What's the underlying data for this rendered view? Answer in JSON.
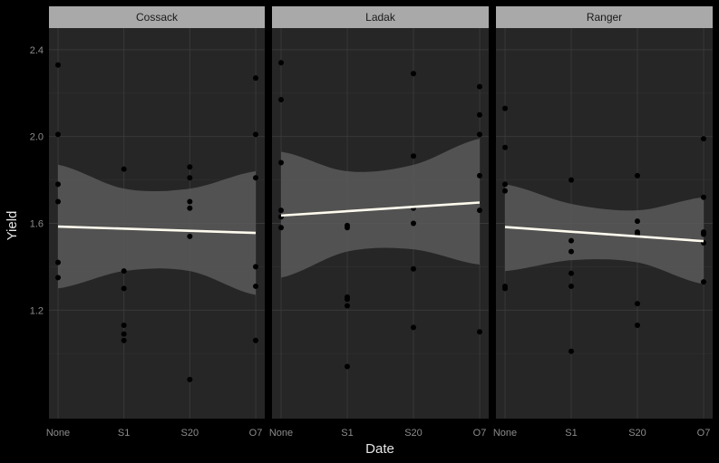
{
  "chart_data": {
    "type": "scatter",
    "facet_by": "Variety",
    "xlabel": "Date",
    "ylabel": "Yield",
    "categories": [
      "None",
      "S1",
      "S20",
      "O7"
    ],
    "ylim": [
      0.7,
      2.5
    ],
    "yticks": [
      "1.2",
      "1.6",
      "2.0",
      "2.4"
    ],
    "grid": true,
    "colors": {
      "background": "#000000",
      "panel": "#262626",
      "grid_major": "#3a3a3a",
      "grid_minor": "#303030",
      "strip": "#a9a9a9",
      "points": "#000000",
      "ribbon": "#5a5a5a",
      "fit_line": "#fffbee"
    },
    "facets": [
      {
        "label": "Cossack",
        "points": [
          {
            "x": "None",
            "y": 2.33
          },
          {
            "x": "None",
            "y": 2.01
          },
          {
            "x": "None",
            "y": 1.78
          },
          {
            "x": "None",
            "y": 1.7
          },
          {
            "x": "None",
            "y": 1.42
          },
          {
            "x": "None",
            "y": 1.35
          },
          {
            "x": "S1",
            "y": 1.85
          },
          {
            "x": "S1",
            "y": 1.38
          },
          {
            "x": "S1",
            "y": 1.3
          },
          {
            "x": "S1",
            "y": 1.13
          },
          {
            "x": "S1",
            "y": 1.09
          },
          {
            "x": "S1",
            "y": 1.06
          },
          {
            "x": "S20",
            "y": 1.86
          },
          {
            "x": "S20",
            "y": 1.81
          },
          {
            "x": "S20",
            "y": 1.7
          },
          {
            "x": "S20",
            "y": 1.67
          },
          {
            "x": "S20",
            "y": 1.54
          },
          {
            "x": "S20",
            "y": 0.88
          },
          {
            "x": "O7",
            "y": 2.27
          },
          {
            "x": "O7",
            "y": 2.01
          },
          {
            "x": "O7",
            "y": 1.81
          },
          {
            "x": "O7",
            "y": 1.4
          },
          {
            "x": "O7",
            "y": 1.31
          },
          {
            "x": "O7",
            "y": 1.06
          }
        ],
        "fit": {
          "start": 1.585,
          "end": 1.556
        },
        "band": {
          "lower": [
            1.3,
            1.38,
            1.38,
            1.27
          ],
          "upper": [
            1.87,
            1.76,
            1.76,
            1.84
          ]
        }
      },
      {
        "label": "Ladak",
        "points": [
          {
            "x": "None",
            "y": 2.34
          },
          {
            "x": "None",
            "y": 2.17
          },
          {
            "x": "None",
            "y": 1.88
          },
          {
            "x": "None",
            "y": 1.66
          },
          {
            "x": "None",
            "y": 1.63
          },
          {
            "x": "None",
            "y": 1.58
          },
          {
            "x": "S1",
            "y": 1.59
          },
          {
            "x": "S1",
            "y": 1.58
          },
          {
            "x": "S1",
            "y": 1.26
          },
          {
            "x": "S1",
            "y": 1.25
          },
          {
            "x": "S1",
            "y": 1.22
          },
          {
            "x": "S1",
            "y": 0.94
          },
          {
            "x": "S20",
            "y": 2.29
          },
          {
            "x": "S20",
            "y": 1.91
          },
          {
            "x": "S20",
            "y": 1.67
          },
          {
            "x": "S20",
            "y": 1.6
          },
          {
            "x": "S20",
            "y": 1.39
          },
          {
            "x": "S20",
            "y": 1.12
          },
          {
            "x": "O7",
            "y": 2.23
          },
          {
            "x": "O7",
            "y": 2.1
          },
          {
            "x": "O7",
            "y": 2.01
          },
          {
            "x": "O7",
            "y": 1.82
          },
          {
            "x": "O7",
            "y": 1.66
          },
          {
            "x": "O7",
            "y": 1.1
          }
        ],
        "fit": {
          "start": 1.636,
          "end": 1.696
        },
        "band": {
          "lower": [
            1.35,
            1.47,
            1.48,
            1.41
          ],
          "upper": [
            1.93,
            1.84,
            1.87,
            1.99
          ]
        }
      },
      {
        "label": "Ranger",
        "points": [
          {
            "x": "None",
            "y": 2.13
          },
          {
            "x": "None",
            "y": 1.95
          },
          {
            "x": "None",
            "y": 1.78
          },
          {
            "x": "None",
            "y": 1.75
          },
          {
            "x": "None",
            "y": 1.31
          },
          {
            "x": "None",
            "y": 1.3
          },
          {
            "x": "S1",
            "y": 1.8
          },
          {
            "x": "S1",
            "y": 1.52
          },
          {
            "x": "S1",
            "y": 1.47
          },
          {
            "x": "S1",
            "y": 1.37
          },
          {
            "x": "S1",
            "y": 1.31
          },
          {
            "x": "S1",
            "y": 1.01
          },
          {
            "x": "S20",
            "y": 1.82
          },
          {
            "x": "S20",
            "y": 1.61
          },
          {
            "x": "S20",
            "y": 1.56
          },
          {
            "x": "S20",
            "y": 1.55
          },
          {
            "x": "S20",
            "y": 1.23
          },
          {
            "x": "S20",
            "y": 1.13
          },
          {
            "x": "O7",
            "y": 1.99
          },
          {
            "x": "O7",
            "y": 1.72
          },
          {
            "x": "O7",
            "y": 1.56
          },
          {
            "x": "O7",
            "y": 1.55
          },
          {
            "x": "O7",
            "y": 1.51
          },
          {
            "x": "O7",
            "y": 1.33
          }
        ],
        "fit": {
          "start": 1.583,
          "end": 1.518
        },
        "band": {
          "lower": [
            1.38,
            1.43,
            1.42,
            1.32
          ],
          "upper": [
            1.78,
            1.69,
            1.66,
            1.72
          ]
        }
      }
    ]
  }
}
